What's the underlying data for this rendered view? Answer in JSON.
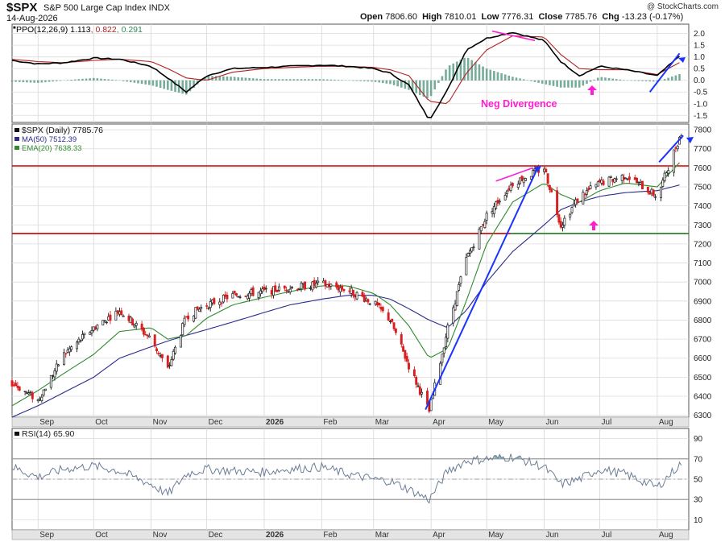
{
  "header": {
    "symbol": "$SPX",
    "description": "S&P 500 Large Cap Index  INDX",
    "date": "14-Aug-2026",
    "credit": "@ StockCharts.com",
    "quote": {
      "open_label": "Open",
      "open": "7806.60",
      "high_label": "High",
      "high": "7810.01",
      "low_label": "Low",
      "low": "7776.31",
      "close_label": "Close",
      "close": "7785.76",
      "chg_label": "Chg",
      "chg": "-13.23 (-0.17%)"
    }
  },
  "colors": {
    "up": "#1a1a1a",
    "down": "#d81e1e",
    "ma50": "#2b2b8c",
    "ema20": "#2e8b2e",
    "ppo": "#000000",
    "signal": "#b22222",
    "hist": "#5f9e8a",
    "support": "#cc0000",
    "support2": "#1f7a1f",
    "annotation_pink": "#ff1fd0",
    "annotation_blue": "#1a33ff",
    "rsi": "#6b7d96",
    "rsi_fill": "#8cb3bf"
  },
  "chart_data": [
    {
      "id": "ppo",
      "type": "line",
      "legend": [
        {
          "text": "PPO(12,26,9)",
          "value": "1.113",
          "color": "#000000"
        },
        {
          "text": "",
          "value": "0.822",
          "color": "#b22222"
        },
        {
          "text": "",
          "value": "0.291",
          "color": "#2e8b57"
        }
      ],
      "ylim": [
        -1.8,
        2.4
      ],
      "yticks": [
        "2.0",
        "1.5",
        "1.0",
        "0.5",
        "0.0",
        "-0.5",
        "-1.0",
        "-1.5"
      ],
      "annotation": "Neg Divergence",
      "x": [
        "2025-08-18",
        "2025-09-01",
        "2025-09-15",
        "2025-10-01",
        "2025-10-15",
        "2025-11-01",
        "2025-11-10",
        "2025-11-20",
        "2025-12-01",
        "2025-12-15",
        "2026-01-01",
        "2026-01-15",
        "2026-02-01",
        "2026-02-15",
        "2026-03-01",
        "2026-03-10",
        "2026-03-20",
        "2026-03-31",
        "2026-04-10",
        "2026-04-20",
        "2026-05-01",
        "2026-05-15",
        "2026-06-01",
        "2026-06-10",
        "2026-06-20",
        "2026-07-01",
        "2026-07-15",
        "2026-08-01",
        "2026-08-14"
      ],
      "series": [
        {
          "name": "PPO",
          "values": [
            0.85,
            0.7,
            0.75,
            0.95,
            0.9,
            0.6,
            0.1,
            -0.5,
            0.2,
            0.5,
            0.55,
            0.6,
            0.65,
            0.6,
            0.5,
            0.3,
            -0.2,
            -1.7,
            -0.4,
            1.3,
            1.8,
            2.05,
            1.7,
            0.8,
            0.2,
            0.6,
            0.45,
            0.2,
            1.1
          ]
        },
        {
          "name": "Signal",
          "values": [
            0.9,
            0.8,
            0.75,
            0.85,
            0.9,
            0.8,
            0.5,
            0.1,
            0.0,
            0.35,
            0.5,
            0.55,
            0.6,
            0.6,
            0.55,
            0.45,
            0.2,
            -0.9,
            -1.0,
            0.3,
            1.3,
            1.9,
            1.85,
            1.1,
            0.5,
            0.45,
            0.45,
            0.25,
            0.8
          ]
        },
        {
          "name": "Histogram",
          "values": [
            -0.05,
            -0.1,
            0.0,
            0.1,
            0.0,
            -0.2,
            -0.4,
            -0.6,
            0.2,
            0.15,
            0.05,
            0.05,
            0.05,
            0.0,
            -0.05,
            -0.15,
            -0.4,
            -0.8,
            0.6,
            1.0,
            0.5,
            0.15,
            -0.15,
            -0.3,
            -0.3,
            0.15,
            0.0,
            -0.05,
            0.29
          ]
        }
      ]
    },
    {
      "id": "price",
      "type": "line",
      "legend": [
        {
          "text": "$SPX (Daily)",
          "value": "7785.76",
          "color": "#111111"
        },
        {
          "text": "MA(50)",
          "value": "7512.39",
          "color": "#2b2b8c"
        },
        {
          "text": "EMA(20)",
          "value": "7638.33",
          "color": "#2e8b2e"
        }
      ],
      "ylim": [
        6290,
        7830
      ],
      "yticks": [
        "7800",
        "7700",
        "7600",
        "7500",
        "7400",
        "7300",
        "7200",
        "7100",
        "7000",
        "6900",
        "6800",
        "6700",
        "6600",
        "6500",
        "6400",
        "6300"
      ],
      "support_levels": [
        7610,
        7255
      ],
      "x": [
        "2025-08-18",
        "2025-09-01",
        "2025-09-15",
        "2025-10-01",
        "2025-10-15",
        "2025-11-01",
        "2025-11-10",
        "2025-11-20",
        "2025-12-01",
        "2025-12-15",
        "2026-01-01",
        "2026-01-15",
        "2026-02-01",
        "2026-02-15",
        "2026-03-01",
        "2026-03-10",
        "2026-03-20",
        "2026-03-31",
        "2026-04-10",
        "2026-04-20",
        "2026-05-01",
        "2026-05-15",
        "2026-06-01",
        "2026-06-10",
        "2026-06-20",
        "2026-07-01",
        "2026-07-15",
        "2026-08-01",
        "2026-08-14"
      ],
      "series": [
        {
          "name": "$SPX (Daily)",
          "values": [
            6470,
            6380,
            6620,
            6760,
            6850,
            6700,
            6540,
            6820,
            6880,
            6930,
            6950,
            6970,
            6990,
            6960,
            6890,
            6800,
            6560,
            6320,
            6760,
            7120,
            7350,
            7520,
            7600,
            7300,
            7450,
            7520,
            7560,
            7450,
            7786
          ]
        },
        {
          "name": "MA(50)",
          "values": [
            6290,
            6350,
            6420,
            6500,
            6600,
            6660,
            6690,
            6720,
            6750,
            6790,
            6840,
            6880,
            6910,
            6930,
            6930,
            6910,
            6860,
            6800,
            6760,
            6850,
            7000,
            7160,
            7300,
            7380,
            7420,
            7450,
            7470,
            7480,
            7512
          ]
        },
        {
          "name": "EMA(20)",
          "values": [
            6350,
            6430,
            6520,
            6620,
            6740,
            6760,
            6700,
            6720,
            6810,
            6880,
            6920,
            6950,
            6980,
            6980,
            6940,
            6880,
            6770,
            6600,
            6650,
            6900,
            7200,
            7420,
            7520,
            7460,
            7420,
            7480,
            7520,
            7500,
            7638
          ]
        }
      ]
    },
    {
      "id": "rsi",
      "type": "line",
      "legend": [
        {
          "text": "RSI(14)",
          "value": "65.90",
          "color": "#333333"
        }
      ],
      "ylim": [
        0,
        100
      ],
      "yticks": [
        "90",
        "70",
        "50",
        "30",
        "10"
      ],
      "x": [
        "2025-08-18",
        "2025-09-01",
        "2025-09-15",
        "2025-10-01",
        "2025-10-15",
        "2025-11-01",
        "2025-11-10",
        "2025-11-20",
        "2025-12-01",
        "2025-12-15",
        "2026-01-01",
        "2026-01-15",
        "2026-02-01",
        "2026-02-15",
        "2026-03-01",
        "2026-03-10",
        "2026-03-20",
        "2026-03-31",
        "2026-04-10",
        "2026-04-20",
        "2026-05-01",
        "2026-05-15",
        "2026-06-01",
        "2026-06-10",
        "2026-06-20",
        "2026-07-01",
        "2026-07-15",
        "2026-08-01",
        "2026-08-14"
      ],
      "series": [
        {
          "name": "RSI(14)",
          "values": [
            62,
            52,
            60,
            63,
            58,
            45,
            35,
            55,
            60,
            58,
            57,
            60,
            62,
            55,
            50,
            48,
            40,
            30,
            58,
            68,
            70,
            72,
            62,
            45,
            50,
            60,
            55,
            42,
            66
          ]
        }
      ]
    }
  ],
  "x_axis": {
    "labels": [
      {
        "text": "Sep",
        "date": "2025-09-01"
      },
      {
        "text": "Oct",
        "date": "2025-10-01"
      },
      {
        "text": "Nov",
        "date": "2025-11-01"
      },
      {
        "text": "Dec",
        "date": "2025-12-01"
      },
      {
        "text": "2026",
        "date": "2026-01-01",
        "bold": true
      },
      {
        "text": "Feb",
        "date": "2026-02-01"
      },
      {
        "text": "Mar",
        "date": "2026-03-01"
      },
      {
        "text": "Apr",
        "date": "2026-04-01"
      },
      {
        "text": "May",
        "date": "2026-05-01"
      },
      {
        "text": "Jun",
        "date": "2026-06-01"
      },
      {
        "text": "Jul",
        "date": "2026-07-01"
      },
      {
        "text": "Aug",
        "date": "2026-08-01"
      }
    ],
    "start": "2025-08-18",
    "end": "2026-08-18"
  }
}
